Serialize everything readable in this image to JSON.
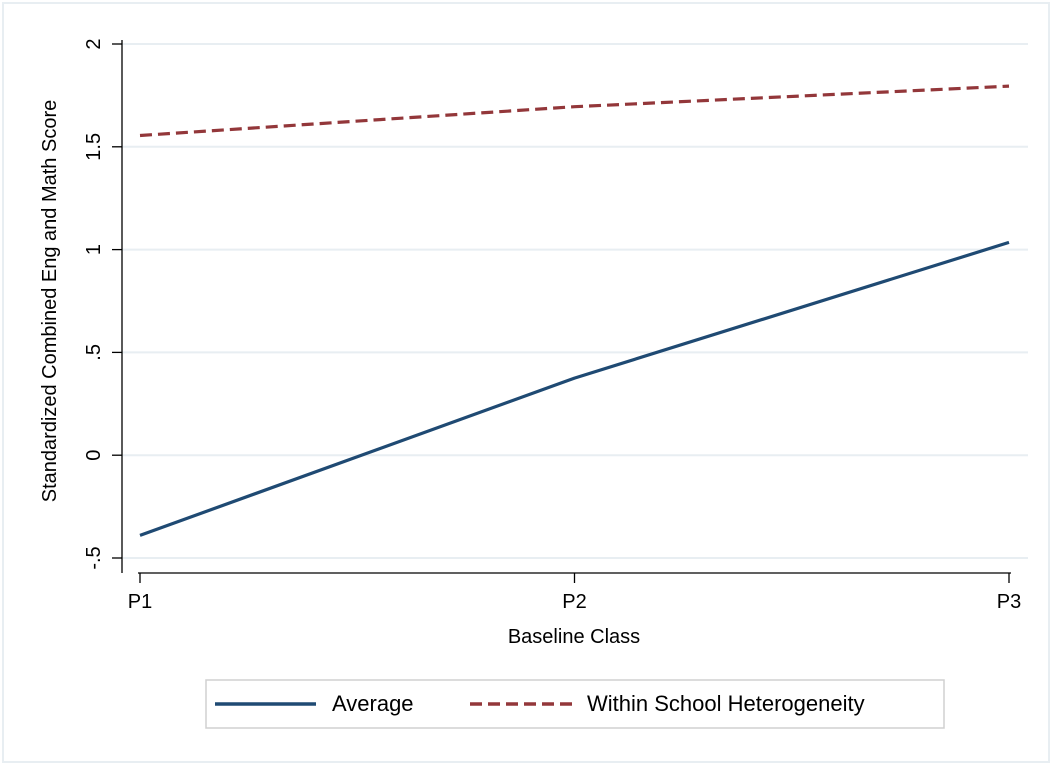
{
  "chart_data": {
    "type": "line",
    "categories": [
      "P1",
      "P2",
      "P3"
    ],
    "xlabel": "Baseline Class",
    "ylabel": "Standardized Combined Eng and Math Score",
    "ylim": [
      -0.5,
      2
    ],
    "yticks": [
      -0.5,
      0,
      0.5,
      1,
      1.5,
      2
    ],
    "ytick_labels": [
      "-.5",
      "0",
      ".5",
      "1",
      "1.5",
      "2"
    ],
    "grid": true,
    "legend_position": "bottom",
    "series": [
      {
        "name": "Average",
        "values": [
          -0.39,
          0.375,
          1.035
        ],
        "color": "#1f4a73",
        "dash": "solid"
      },
      {
        "name": "Within School Heterogeneity",
        "values": [
          1.555,
          1.695,
          1.795
        ],
        "color": "#93373a",
        "dash": "dashed"
      }
    ]
  }
}
